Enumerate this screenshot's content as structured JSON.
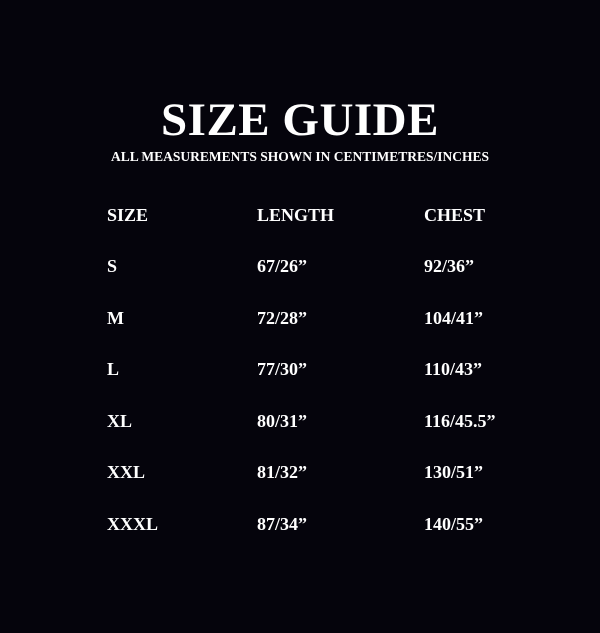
{
  "title": "SIZE GUIDE",
  "subtitle": "ALL MEASUREMENTS SHOWN IN CENTIMETRES/INCHES",
  "table": {
    "headers": [
      "SIZE",
      "LENGTH",
      "CHEST"
    ],
    "rows": [
      [
        "S",
        "67/26”",
        "92/36”"
      ],
      [
        "M",
        "72/28”",
        "104/41”"
      ],
      [
        "L",
        "77/30”",
        "110/43”"
      ],
      [
        "XL",
        "80/31”",
        "116/45.5”"
      ],
      [
        "XXL",
        "81/32”",
        "130/51”"
      ],
      [
        "XXXL",
        "87/34”",
        "140/55”"
      ]
    ]
  },
  "colors": {
    "background": "#05040c",
    "text": "#ffffff"
  }
}
